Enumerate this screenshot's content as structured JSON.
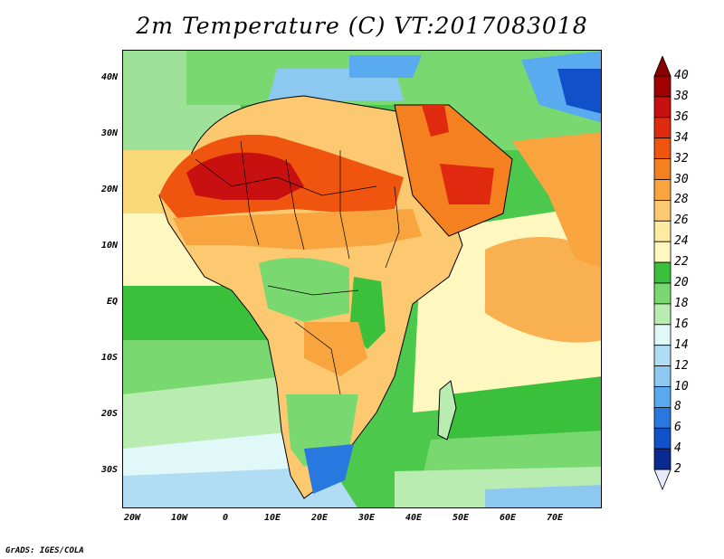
{
  "title": "2m Temperature (C) VT:2017083018",
  "footer": "GrADS: IGES/COLA",
  "map": {
    "lat_ticks": [
      "40N",
      "30N",
      "20N",
      "10N",
      "EQ",
      "10S",
      "20S",
      "30S"
    ],
    "lon_ticks": [
      "20W",
      "10W",
      "0",
      "10E",
      "20E",
      "30E",
      "40E",
      "50E",
      "60E",
      "70E"
    ],
    "extent": {
      "lon_min": -22,
      "lon_max": 80,
      "lat_min": -37,
      "lat_max": 45
    }
  },
  "colorbar": {
    "levels": [
      "40",
      "38",
      "36",
      "34",
      "32",
      "30",
      "28",
      "26",
      "24",
      "22",
      "20",
      "18",
      "16",
      "14",
      "12",
      "10",
      "8",
      "6",
      "4",
      "2"
    ],
    "colors_top_to_bottom": [
      "#a00000",
      "#c81010",
      "#e02a10",
      "#f05510",
      "#f58020",
      "#f8a540",
      "#fcc870",
      "#feeaa0",
      "#fff7c0",
      "#3ac03a",
      "#7ad870",
      "#b8ecb0",
      "#e0f8f8",
      "#b0dcf4",
      "#8cc8f0",
      "#5aaaf0",
      "#2878e0",
      "#1050c8",
      "#0a2a90",
      "#ffffff"
    ],
    "top_arrow_color": "#8a0000",
    "bottom_arrow_color": "#e8e8ff"
  }
}
